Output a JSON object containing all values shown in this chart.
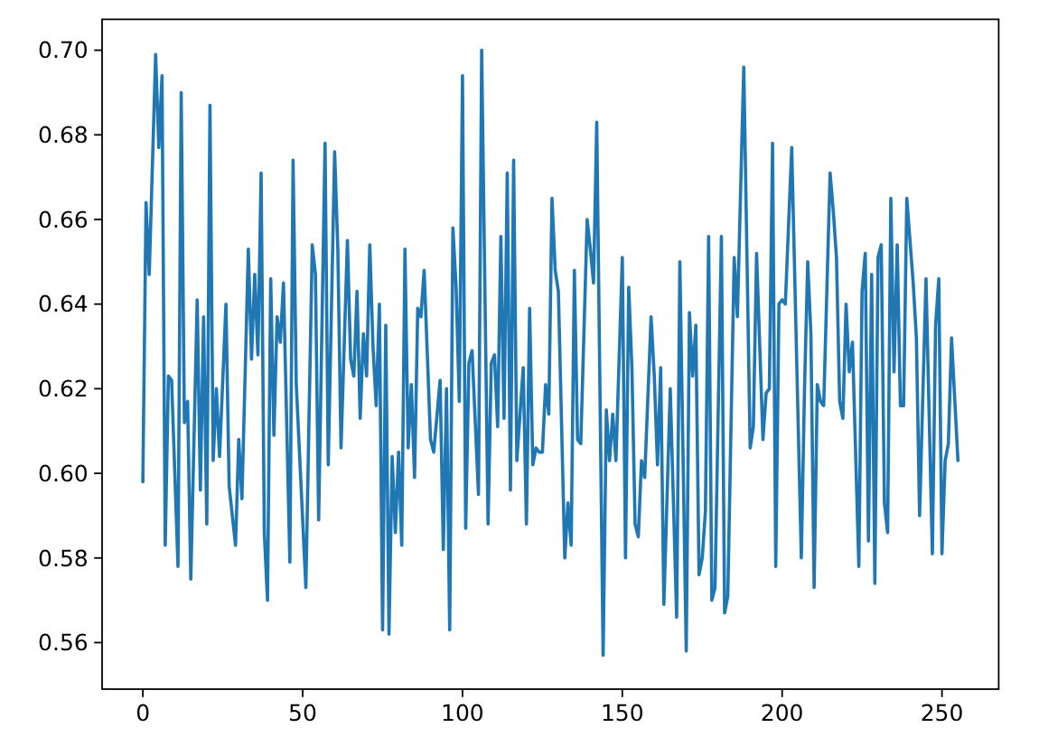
{
  "chart_data": {
    "type": "line",
    "color": "#1f77b4",
    "x": [
      0,
      1,
      2,
      4,
      5,
      6,
      7,
      8,
      9,
      11,
      12,
      13,
      14,
      15,
      17,
      18,
      19,
      20,
      21,
      22,
      23,
      24,
      26,
      27,
      29,
      30,
      31,
      33,
      34,
      35,
      36,
      37,
      38,
      39,
      40,
      41,
      42,
      43,
      44,
      46,
      47,
      48,
      49,
      51,
      53,
      54,
      55,
      57,
      58,
      60,
      61,
      62,
      64,
      65,
      66,
      67,
      68,
      69,
      70,
      71,
      72,
      73,
      74,
      75,
      76,
      77,
      78,
      79,
      80,
      81,
      82,
      83,
      84,
      85,
      86,
      87,
      88,
      90,
      91,
      93,
      94,
      95,
      96,
      97,
      98,
      99,
      100,
      101,
      102,
      103,
      105,
      106,
      108,
      109,
      110,
      111,
      112,
      113,
      114,
      115,
      116,
      117,
      119,
      120,
      121,
      122,
      123,
      124,
      125,
      126,
      127,
      128,
      129,
      130,
      132,
      133,
      134,
      135,
      136,
      137,
      139,
      140,
      141,
      142,
      144,
      145,
      146,
      147,
      148,
      150,
      151,
      152,
      153,
      154,
      155,
      156,
      157,
      159,
      160,
      161,
      162,
      163,
      165,
      167,
      168,
      170,
      171,
      172,
      173,
      174,
      175,
      176,
      177,
      178,
      179,
      181,
      182,
      183,
      185,
      186,
      188,
      190,
      191,
      192,
      194,
      195,
      196,
      197,
      198,
      199,
      200,
      201,
      203,
      206,
      207,
      208,
      209,
      210,
      211,
      212,
      213,
      215,
      216,
      217,
      218,
      219,
      220,
      221,
      222,
      224,
      225,
      226,
      227,
      228,
      229,
      230,
      231,
      232,
      233,
      234,
      235,
      236,
      237,
      238,
      239,
      241,
      242,
      243,
      245,
      247,
      248,
      249,
      250,
      251,
      252,
      253,
      255
    ],
    "values": [
      0.598,
      0.664,
      0.647,
      0.699,
      0.677,
      0.694,
      0.583,
      0.623,
      0.622,
      0.578,
      0.69,
      0.612,
      0.617,
      0.575,
      0.641,
      0.596,
      0.637,
      0.588,
      0.687,
      0.603,
      0.62,
      0.604,
      0.64,
      0.597,
      0.583,
      0.608,
      0.594,
      0.653,
      0.627,
      0.647,
      0.628,
      0.671,
      0.586,
      0.57,
      0.646,
      0.609,
      0.637,
      0.631,
      0.645,
      0.579,
      0.674,
      0.621,
      0.605,
      0.573,
      0.654,
      0.647,
      0.589,
      0.678,
      0.602,
      0.676,
      0.653,
      0.606,
      0.655,
      0.627,
      0.623,
      0.643,
      0.613,
      0.633,
      0.623,
      0.654,
      0.63,
      0.616,
      0.64,
      0.563,
      0.635,
      0.562,
      0.604,
      0.586,
      0.605,
      0.583,
      0.653,
      0.606,
      0.621,
      0.599,
      0.639,
      0.637,
      0.648,
      0.608,
      0.605,
      0.622,
      0.582,
      0.62,
      0.563,
      0.658,
      0.644,
      0.617,
      0.694,
      0.587,
      0.626,
      0.629,
      0.595,
      0.7,
      0.588,
      0.626,
      0.628,
      0.611,
      0.656,
      0.613,
      0.671,
      0.596,
      0.674,
      0.603,
      0.625,
      0.588,
      0.639,
      0.602,
      0.606,
      0.605,
      0.605,
      0.621,
      0.614,
      0.665,
      0.648,
      0.643,
      0.58,
      0.593,
      0.583,
      0.648,
      0.608,
      0.607,
      0.66,
      0.653,
      0.645,
      0.683,
      0.557,
      0.615,
      0.603,
      0.614,
      0.603,
      0.651,
      0.58,
      0.644,
      0.625,
      0.588,
      0.585,
      0.603,
      0.599,
      0.637,
      0.623,
      0.602,
      0.625,
      0.569,
      0.62,
      0.566,
      0.65,
      0.558,
      0.638,
      0.623,
      0.635,
      0.576,
      0.58,
      0.591,
      0.656,
      0.57,
      0.573,
      0.656,
      0.567,
      0.571,
      0.651,
      0.637,
      0.696,
      0.606,
      0.611,
      0.652,
      0.608,
      0.619,
      0.62,
      0.678,
      0.578,
      0.64,
      0.641,
      0.64,
      0.677,
      0.58,
      0.62,
      0.65,
      0.633,
      0.573,
      0.621,
      0.617,
      0.616,
      0.671,
      0.662,
      0.651,
      0.617,
      0.613,
      0.64,
      0.624,
      0.631,
      0.578,
      0.643,
      0.652,
      0.584,
      0.647,
      0.574,
      0.651,
      0.654,
      0.593,
      0.586,
      0.665,
      0.624,
      0.654,
      0.616,
      0.616,
      0.665,
      0.645,
      0.632,
      0.59,
      0.646,
      0.581,
      0.635,
      0.646,
      0.581,
      0.603,
      0.607,
      0.632,
      0.603
    ],
    "xlim": [
      -12.75,
      267.75
    ],
    "xticks": [
      0,
      50,
      100,
      150,
      200,
      250
    ],
    "ylim": [
      0.549,
      0.7073
    ],
    "yticks": [
      0.56,
      0.58,
      {
        "value": 0.6,
        "label": "0.60"
      },
      0.62,
      0.64,
      0.66,
      0.68,
      {
        "value": 0.7,
        "label": "0.70"
      }
    ]
  }
}
